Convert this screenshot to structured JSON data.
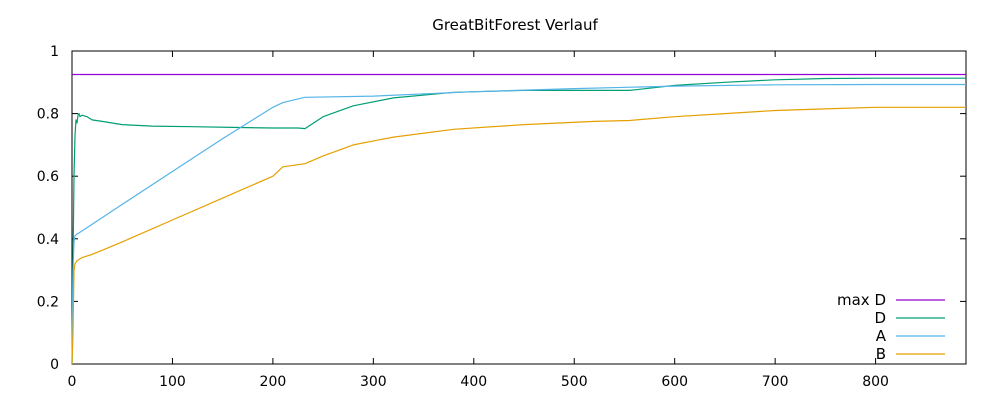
{
  "chart_data": {
    "type": "line",
    "title": "GreatBitForest Verlauf",
    "xlabel": "",
    "ylabel": "",
    "xlim": [
      0,
      890
    ],
    "ylim": [
      0,
      1
    ],
    "x_ticks": [
      0,
      100,
      200,
      300,
      400,
      500,
      600,
      700,
      800
    ],
    "y_ticks": [
      0,
      0.2,
      0.4,
      0.6,
      0.8,
      1
    ],
    "y_tick_labels": [
      "0",
      "0.2",
      "0.4",
      "0.6",
      "0.8",
      "1"
    ],
    "legend_position": "bottom-right",
    "grid": false,
    "series": [
      {
        "name": "max D",
        "color": "#9400d3",
        "x": [
          0,
          890
        ],
        "y": [
          0.925,
          0.925
        ]
      },
      {
        "name": "D",
        "color": "#009e73",
        "x": [
          0,
          1,
          2,
          3,
          4,
          5,
          6,
          7,
          8,
          10,
          15,
          20,
          30,
          50,
          80,
          120,
          160,
          200,
          225,
          232,
          250,
          280,
          320,
          380,
          450,
          520,
          555,
          600,
          650,
          700,
          750,
          800,
          890
        ],
        "y": [
          0.0,
          0.32,
          0.6,
          0.73,
          0.78,
          0.77,
          0.795,
          0.8,
          0.79,
          0.795,
          0.79,
          0.78,
          0.775,
          0.765,
          0.76,
          0.758,
          0.756,
          0.754,
          0.754,
          0.752,
          0.79,
          0.825,
          0.85,
          0.868,
          0.874,
          0.874,
          0.874,
          0.89,
          0.9,
          0.908,
          0.912,
          0.913,
          0.913
        ]
      },
      {
        "name": "A",
        "color": "#56b4e9",
        "x": [
          0,
          1,
          2,
          3,
          5,
          10,
          50,
          100,
          150,
          200,
          210,
          232,
          300,
          400,
          500,
          600,
          700,
          800,
          890
        ],
        "y": [
          0.0,
          0.3,
          0.39,
          0.41,
          0.415,
          0.425,
          0.51,
          0.615,
          0.72,
          0.82,
          0.835,
          0.852,
          0.856,
          0.87,
          0.88,
          0.888,
          0.892,
          0.893,
          0.893
        ]
      },
      {
        "name": "B",
        "color": "#e69f00",
        "x": [
          0,
          1,
          2,
          3,
          5,
          10,
          20,
          50,
          100,
          150,
          200,
          210,
          232,
          250,
          280,
          320,
          380,
          450,
          520,
          555,
          600,
          650,
          700,
          750,
          800,
          890
        ],
        "y": [
          0.0,
          0.1,
          0.3,
          0.32,
          0.33,
          0.34,
          0.35,
          0.39,
          0.46,
          0.53,
          0.6,
          0.63,
          0.64,
          0.665,
          0.7,
          0.725,
          0.75,
          0.765,
          0.775,
          0.778,
          0.79,
          0.8,
          0.81,
          0.815,
          0.82,
          0.82
        ]
      }
    ]
  }
}
